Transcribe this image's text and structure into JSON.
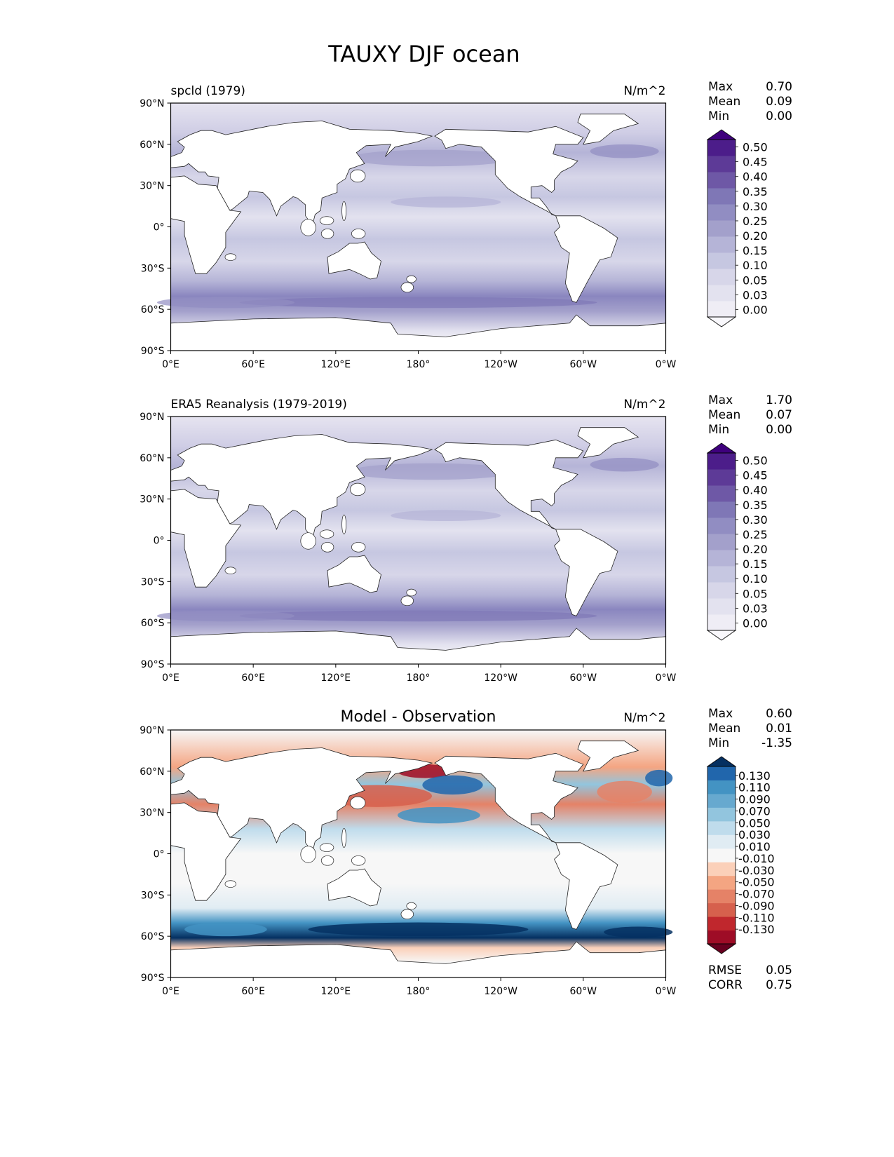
{
  "figure": {
    "title": "TAUXY DJF ocean"
  },
  "x_ticks": [
    "0°E",
    "60°E",
    "120°E",
    "180°",
    "120°W",
    "60°W",
    "0°W"
  ],
  "y_ticks": [
    "90°N",
    "60°N",
    "30°N",
    "0°",
    "30°S",
    "60°S",
    "90°S"
  ],
  "chart_data": [
    {
      "type": "heatmap",
      "title": "spcld (1979)",
      "units": "N/m^2",
      "stats": [
        {
          "label": "Max",
          "value": "0.70"
        },
        {
          "label": "Mean",
          "value": "0.09"
        },
        {
          "label": "Min",
          "value": "0.00"
        }
      ],
      "colorbar": {
        "levels": [
          "0.50",
          "0.45",
          "0.40",
          "0.35",
          "0.30",
          "0.25",
          "0.20",
          "0.15",
          "0.10",
          "0.05",
          "0.03",
          "0.00"
        ],
        "colors": [
          "#f9f8fc",
          "#efedf5",
          "#e3e2ef",
          "#d7d6e9",
          "#c6c7e1",
          "#b5b4d7",
          "#a3a0cb",
          "#918dc2",
          "#7f77b6",
          "#6e58a6",
          "#5d3a97",
          "#4c1d8a",
          "#3f007d"
        ]
      },
      "ocean_style": "purple"
    },
    {
      "type": "heatmap",
      "title": "ERA5 Reanalysis (1979-2019)",
      "units": "N/m^2",
      "stats": [
        {
          "label": "Max",
          "value": "1.70"
        },
        {
          "label": "Mean",
          "value": "0.07"
        },
        {
          "label": "Min",
          "value": "0.00"
        }
      ],
      "colorbar": {
        "levels": [
          "0.50",
          "0.45",
          "0.40",
          "0.35",
          "0.30",
          "0.25",
          "0.20",
          "0.15",
          "0.10",
          "0.05",
          "0.03",
          "0.00"
        ],
        "colors": [
          "#f9f8fc",
          "#efedf5",
          "#e3e2ef",
          "#d7d6e9",
          "#c6c7e1",
          "#b5b4d7",
          "#a3a0cb",
          "#918dc2",
          "#7f77b6",
          "#6e58a6",
          "#5d3a97",
          "#4c1d8a",
          "#3f007d"
        ]
      },
      "ocean_style": "purple"
    },
    {
      "type": "heatmap",
      "title": "Model - Observation",
      "units": "N/m^2",
      "stats": [
        {
          "label": "Max",
          "value": "0.60"
        },
        {
          "label": "Mean",
          "value": "0.01"
        },
        {
          "label": "Min",
          "value": "-1.35"
        }
      ],
      "colorbar": {
        "levels": [
          "0.130",
          "0.110",
          "0.090",
          "0.070",
          "0.050",
          "0.030",
          "0.010",
          "-0.010",
          "-0.030",
          "-0.050",
          "-0.070",
          "-0.090",
          "-0.110",
          "-0.130"
        ],
        "colors": [
          "#67001f",
          "#9e0c26",
          "#c0272d",
          "#d6604d",
          "#e58267",
          "#f4a582",
          "#fbd0b9",
          "#f7f7f7",
          "#e0ecf3",
          "#bfdcec",
          "#92c5de",
          "#67a9cf",
          "#4393c3",
          "#2166ac",
          "#053061"
        ]
      },
      "ocean_style": "diff",
      "metrics": [
        {
          "label": "RMSE",
          "value": "0.05"
        },
        {
          "label": "CORR",
          "value": "0.75"
        }
      ]
    }
  ]
}
